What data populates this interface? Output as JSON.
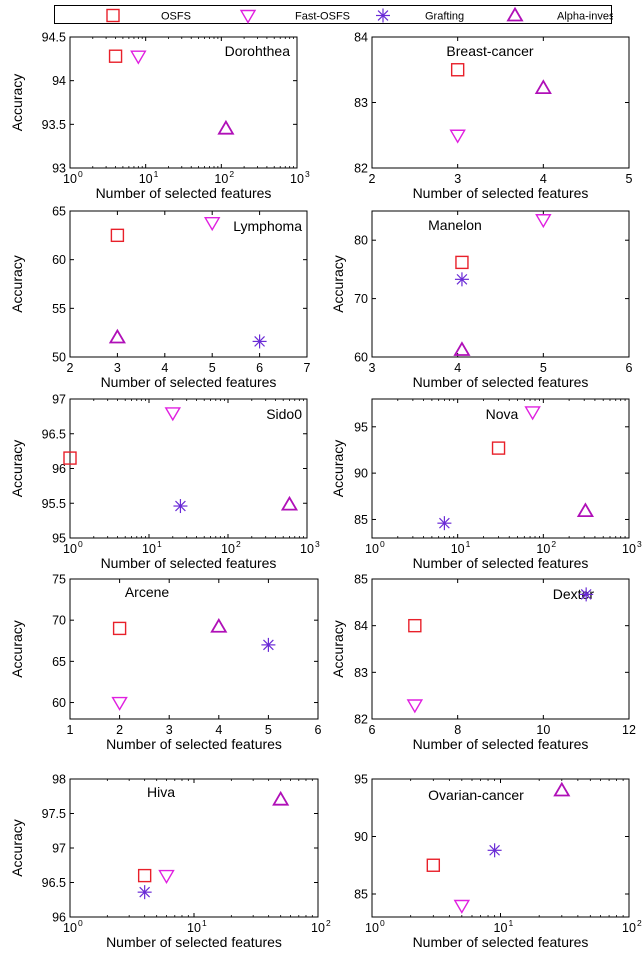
{
  "legend": [
    {
      "label": "OSFS",
      "marker": "square",
      "color": "#e8202a"
    },
    {
      "label": "Fast-OSFS",
      "marker": "triangle-down",
      "color": "#e020e0"
    },
    {
      "label": "Grafting",
      "marker": "star",
      "color": "#6a2bd6"
    },
    {
      "label": "Alpha-investing",
      "marker": "triangle-up",
      "color": "#b010b8"
    }
  ],
  "chart_data": [
    {
      "type": "scatter",
      "title": "Dorohthea",
      "xlabel": "Number of selected features",
      "ylabel": "Accuracy",
      "xscale": "log",
      "xlim": [
        1,
        1000
      ],
      "ylim": [
        93,
        94.5
      ],
      "xticks": [
        1,
        10,
        100,
        1000
      ],
      "xticklabels": [
        "10",
        "10",
        "10",
        "10"
      ],
      "xtickexp": [
        "0",
        "1",
        "2",
        "3"
      ],
      "yticks": [
        93,
        93.5,
        94,
        94.5
      ],
      "yticklabels": [
        "93",
        "93.5",
        "94",
        "94.5"
      ],
      "series": [
        {
          "name": "OSFS",
          "points": [
            [
              4,
              94.28
            ]
          ]
        },
        {
          "name": "Fast-OSFS",
          "points": [
            [
              8,
              94.28
            ]
          ]
        },
        {
          "name": "Alpha-investing",
          "points": [
            [
              115,
              93.45
            ]
          ]
        }
      ]
    },
    {
      "type": "scatter",
      "title": "Breast-cancer",
      "xlabel": "Number of selected features",
      "ylabel": "",
      "xscale": "linear",
      "xlim": [
        2,
        5
      ],
      "ylim": [
        82,
        84
      ],
      "xticks": [
        2,
        3,
        4,
        5
      ],
      "xticklabels": [
        "2",
        "3",
        "4",
        "5"
      ],
      "yticks": [
        82,
        83,
        84
      ],
      "yticklabels": [
        "82",
        "83",
        "84"
      ],
      "series": [
        {
          "name": "OSFS",
          "points": [
            [
              3,
              83.5
            ]
          ]
        },
        {
          "name": "Fast-OSFS",
          "points": [
            [
              3,
              82.5
            ]
          ]
        },
        {
          "name": "Alpha-investing",
          "points": [
            [
              4,
              83.22
            ]
          ]
        }
      ]
    },
    {
      "type": "scatter",
      "title": "Lymphoma",
      "xlabel": "Number of selected features",
      "ylabel": "Accuracy",
      "xscale": "linear",
      "xlim": [
        2,
        7
      ],
      "ylim": [
        50,
        65
      ],
      "xticks": [
        2,
        3,
        4,
        5,
        6,
        7
      ],
      "xticklabels": [
        "2",
        "3",
        "4",
        "5",
        "6",
        "7"
      ],
      "yticks": [
        50,
        55,
        60,
        65
      ],
      "yticklabels": [
        "50",
        "55",
        "60",
        "65"
      ],
      "series": [
        {
          "name": "OSFS",
          "points": [
            [
              3,
              62.5
            ]
          ]
        },
        {
          "name": "Fast-OSFS",
          "points": [
            [
              5,
              63.8
            ]
          ]
        },
        {
          "name": "Grafting",
          "points": [
            [
              6,
              51.6
            ]
          ]
        },
        {
          "name": "Alpha-investing",
          "points": [
            [
              3,
              52.0
            ]
          ]
        }
      ]
    },
    {
      "type": "scatter",
      "title": "Manelon",
      "xlabel": "Number of selected features",
      "ylabel": "Accuracy",
      "xscale": "linear",
      "xlim": [
        3,
        6
      ],
      "ylim": [
        60,
        85
      ],
      "xticks": [
        3,
        4,
        5,
        6
      ],
      "xticklabels": [
        "3",
        "4",
        "5",
        "6"
      ],
      "yticks": [
        60,
        70,
        80
      ],
      "yticklabels": [
        "60",
        "70",
        "80"
      ],
      "series": [
        {
          "name": "OSFS",
          "points": [
            [
              4.05,
              76.2
            ]
          ]
        },
        {
          "name": "Fast-OSFS",
          "points": [
            [
              5,
              83.5
            ]
          ]
        },
        {
          "name": "Grafting",
          "points": [
            [
              4.05,
              73.3
            ]
          ]
        },
        {
          "name": "Alpha-investing",
          "points": [
            [
              4.05,
              61.2
            ]
          ]
        }
      ]
    },
    {
      "type": "scatter",
      "title": "Sido0",
      "xlabel": "Number of selected features",
      "ylabel": "Accuracy",
      "xscale": "log",
      "xlim": [
        1,
        1000
      ],
      "ylim": [
        95,
        97
      ],
      "xticks": [
        1,
        10,
        100,
        1000
      ],
      "xticklabels": [
        "10",
        "10",
        "10",
        "10"
      ],
      "xtickexp": [
        "0",
        "1",
        "2",
        "3"
      ],
      "yticks": [
        95,
        95.5,
        96,
        96.5,
        97
      ],
      "yticklabels": [
        "95",
        "95.5",
        "96",
        "96.5",
        "97"
      ],
      "series": [
        {
          "name": "OSFS",
          "points": [
            [
              1,
              96.15
            ]
          ]
        },
        {
          "name": "Fast-OSFS",
          "points": [
            [
              20,
              96.8
            ]
          ]
        },
        {
          "name": "Grafting",
          "points": [
            [
              25,
              95.46
            ]
          ]
        },
        {
          "name": "Alpha-investing",
          "points": [
            [
              600,
              95.48
            ]
          ]
        }
      ]
    },
    {
      "type": "scatter",
      "title": "Nova",
      "xlabel": "Number of selected features",
      "ylabel": "Accuracy",
      "xscale": "log",
      "xlim": [
        1,
        1000
      ],
      "ylim": [
        83,
        98
      ],
      "xticks": [
        1,
        10,
        100,
        1000
      ],
      "xticklabels": [
        "10",
        "10",
        "10",
        "10"
      ],
      "xtickexp": [
        "0",
        "1",
        "2",
        "3"
      ],
      "yticks": [
        85,
        90,
        95
      ],
      "yticklabels": [
        "85",
        "90",
        "95"
      ],
      "series": [
        {
          "name": "OSFS",
          "points": [
            [
              30,
              92.7
            ]
          ]
        },
        {
          "name": "Fast-OSFS",
          "points": [
            [
              75,
              96.6
            ]
          ]
        },
        {
          "name": "Grafting",
          "points": [
            [
              7,
              84.6
            ]
          ]
        },
        {
          "name": "Alpha-investing",
          "points": [
            [
              310,
              85.9
            ]
          ]
        }
      ]
    },
    {
      "type": "scatter",
      "title": "Arcene",
      "xlabel": "Number of selected features",
      "ylabel": "Accuracy",
      "xscale": "linear",
      "xlim": [
        1,
        6
      ],
      "ylim": [
        58,
        75
      ],
      "xticks": [
        1,
        2,
        3,
        4,
        5,
        6
      ],
      "xticklabels": [
        "1",
        "2",
        "3",
        "4",
        "5",
        "6"
      ],
      "yticks": [
        60,
        65,
        70,
        75
      ],
      "yticklabels": [
        "60",
        "65",
        "70",
        "75"
      ],
      "series": [
        {
          "name": "OSFS",
          "points": [
            [
              2,
              69.0
            ]
          ]
        },
        {
          "name": "Fast-OSFS",
          "points": [
            [
              2,
              60.0
            ]
          ]
        },
        {
          "name": "Grafting",
          "points": [
            [
              5,
              67.0
            ]
          ]
        },
        {
          "name": "Alpha-investing",
          "points": [
            [
              4,
              69.2
            ]
          ]
        }
      ]
    },
    {
      "type": "scatter",
      "title": "Dexter",
      "xlabel": "Number of selected features",
      "ylabel": "Accuracy",
      "xscale": "linear",
      "xlim": [
        6,
        12
      ],
      "ylim": [
        82,
        85
      ],
      "xticks": [
        6,
        8,
        10,
        12
      ],
      "xticklabels": [
        "6",
        "8",
        "10",
        "12"
      ],
      "yticks": [
        82,
        83,
        84,
        85
      ],
      "yticklabels": [
        "82",
        "83",
        "84",
        "85"
      ],
      "series": [
        {
          "name": "OSFS",
          "points": [
            [
              7,
              84.0
            ]
          ]
        },
        {
          "name": "Fast-OSFS",
          "points": [
            [
              7,
              82.3
            ]
          ]
        },
        {
          "name": "Grafting",
          "points": [
            [
              11,
              84.67
            ]
          ]
        }
      ]
    },
    {
      "type": "scatter",
      "title": "Hiva",
      "xlabel": "Number of selected features",
      "ylabel": "Accuracy",
      "xscale": "log",
      "xlim": [
        1,
        100
      ],
      "ylim": [
        96,
        98
      ],
      "xticks": [
        1,
        10,
        100
      ],
      "xticklabels": [
        "10",
        "10",
        "10"
      ],
      "xtickexp": [
        "0",
        "1",
        "2"
      ],
      "yticks": [
        96,
        96.5,
        97,
        97.5,
        98
      ],
      "yticklabels": [
        "96",
        "96.5",
        "97",
        "97.5",
        "98"
      ],
      "series": [
        {
          "name": "OSFS",
          "points": [
            [
              4,
              96.6
            ]
          ]
        },
        {
          "name": "Fast-OSFS",
          "points": [
            [
              6,
              96.6
            ]
          ]
        },
        {
          "name": "Grafting",
          "points": [
            [
              4,
              96.36
            ]
          ]
        },
        {
          "name": "Alpha-investing",
          "points": [
            [
              50,
              97.7
            ]
          ]
        }
      ]
    },
    {
      "type": "scatter",
      "title": "Ovarian-cancer",
      "xlabel": "Number of selected features",
      "ylabel": "",
      "xscale": "log",
      "xlim": [
        1,
        100
      ],
      "ylim": [
        83,
        95
      ],
      "xticks": [
        1,
        10,
        100
      ],
      "xticklabels": [
        "10",
        "10",
        "10"
      ],
      "xtickexp": [
        "0",
        "1",
        "2"
      ],
      "yticks": [
        85,
        90,
        95
      ],
      "yticklabels": [
        "85",
        "90",
        "95"
      ],
      "series": [
        {
          "name": "OSFS",
          "points": [
            [
              3,
              87.5
            ]
          ]
        },
        {
          "name": "Fast-OSFS",
          "points": [
            [
              5,
              84.0
            ]
          ]
        },
        {
          "name": "Grafting",
          "points": [
            [
              9,
              88.8
            ]
          ]
        },
        {
          "name": "Alpha-investing",
          "points": [
            [
              30,
              94.0
            ]
          ]
        }
      ]
    }
  ]
}
